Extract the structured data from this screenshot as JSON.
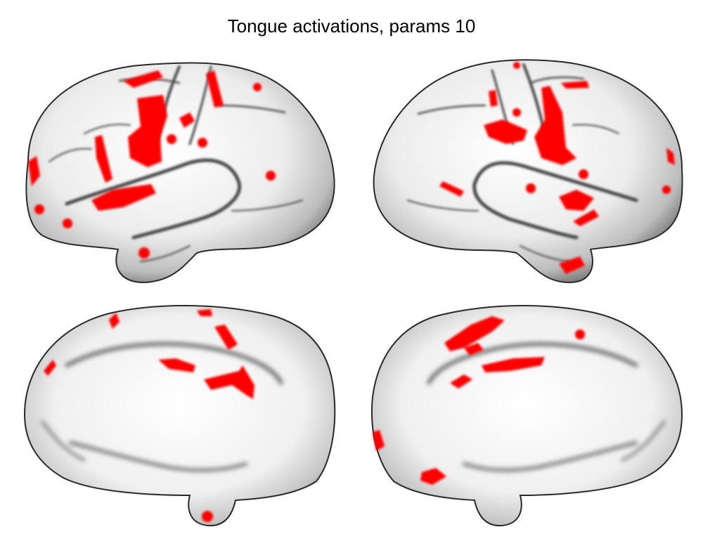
{
  "figure": {
    "title": "Tongue activations, params 10"
  },
  "activation_color": "#ff0000",
  "surface_color": "#f2f2f2",
  "views": [
    {
      "name": "left-lateral"
    },
    {
      "name": "right-lateral"
    },
    {
      "name": "left-medial"
    },
    {
      "name": "right-medial"
    }
  ]
}
